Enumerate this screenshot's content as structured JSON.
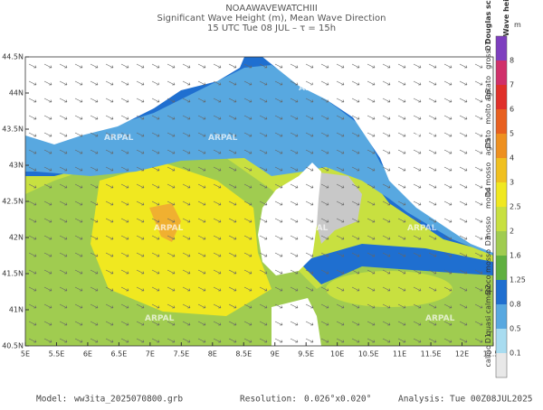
{
  "header": {
    "title": "NOAAWAVEWATCHIII",
    "subtitle": "Significant Wave Height (m), Mean Wave Direction",
    "time": "15 UTC Tue 08 JUL  –  τ = 15h"
  },
  "map": {
    "lat_labels": [
      "40.5N",
      "41N",
      "41.5N",
      "42N",
      "42.5N",
      "43N",
      "43.5N",
      "44N",
      "44.5N"
    ],
    "lon_labels": [
      "5E",
      "5.5E",
      "6E",
      "6.5E",
      "7E",
      "7.5E",
      "8E",
      "8.5E",
      "9E",
      "9.5E",
      "10E",
      "10.5E",
      "11E",
      "11.5E",
      "12E",
      "12.5E"
    ],
    "watermark": "ARPAL"
  },
  "colorbar": {
    "title": "Wave height",
    "unit": "m",
    "labels": [
      "8",
      "7",
      "6",
      "5",
      "4",
      "3",
      "2.5",
      "2",
      "1.6",
      "1.25",
      "0.8",
      "0.5",
      "0.1"
    ],
    "colors": [
      "#7e3fbf",
      "#d0306a",
      "#e0302a",
      "#e86020",
      "#ee9020",
      "#f0c020",
      "#f0e820",
      "#c8e040",
      "#a0cc50",
      "#60b040",
      "#1f6fd0",
      "#58a8e0",
      "#a8dcf0",
      "#e8e8e8"
    ],
    "douglas_title": "Douglas scale",
    "douglas": [
      "D7",
      "D6",
      "D5",
      "D4",
      "D3",
      "D2",
      "D1"
    ],
    "sea_states": [
      "grosso",
      "molto agitato",
      "agitato",
      "molto mosso",
      "mosso",
      "poco mosso",
      "quasi calmo",
      "calmo"
    ]
  },
  "footer": {
    "model_label": "Model:",
    "model": "ww3ita_2025070800.grb",
    "res_label": "Resolution:",
    "res": "0.026°x0.020°",
    "analysis_label": "Analysis:",
    "analysis": "Tue 00Z08JUL2025"
  }
}
